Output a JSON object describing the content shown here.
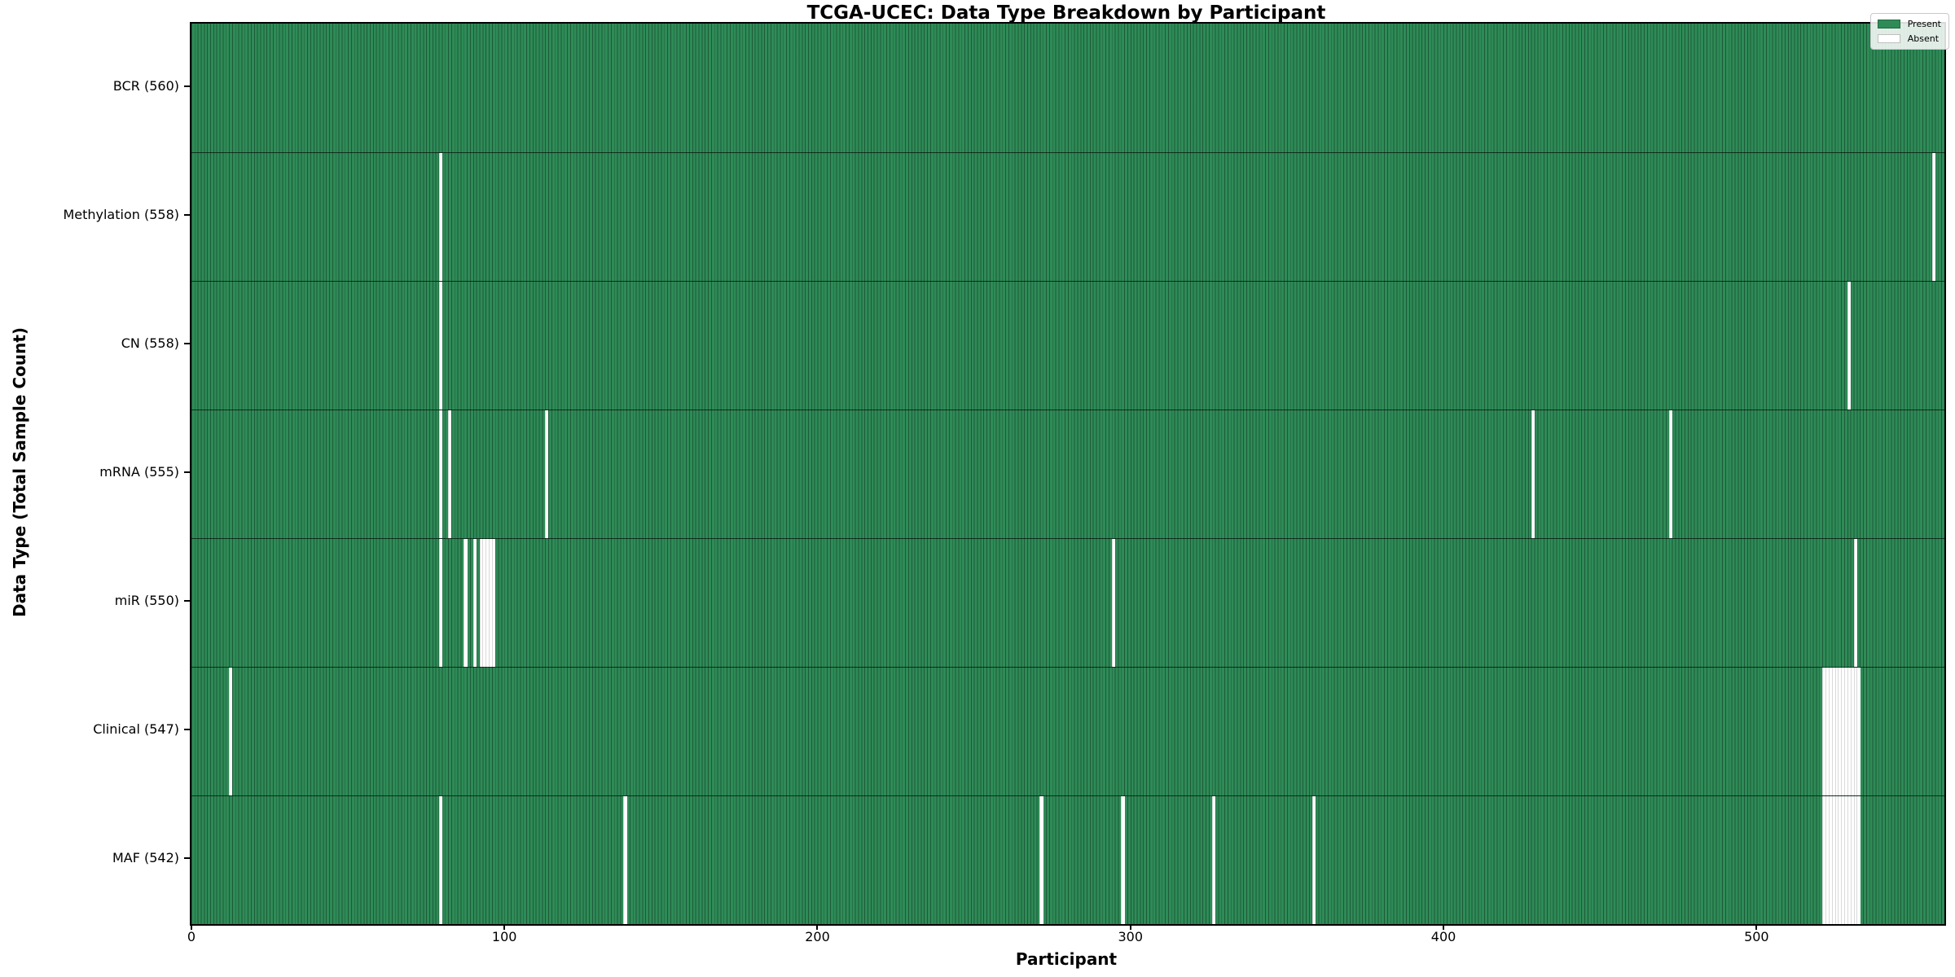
{
  "title": "TCGA-UCEC: Data Type Breakdown by Participant",
  "x_axis_label": "Participant",
  "y_axis_label": "Data Type (Total Sample Count)",
  "legend": {
    "present_label": "Present",
    "absent_label": "Absent"
  },
  "colors": {
    "present": "#2e8b57",
    "absent": "#ffffff",
    "bar_edge": "rgba(0,0,0,0.35)",
    "row_divider": "rgba(0,0,0,0.65)",
    "axis": "#000000"
  },
  "chart_data": {
    "type": "heatmap",
    "title": "TCGA-UCEC: Data Type Breakdown by Participant",
    "xlabel": "Participant",
    "ylabel": "Data Type (Total Sample Count)",
    "legend_entries": [
      "Present",
      "Absent"
    ],
    "legend_position": "upper right",
    "grid": false,
    "total_participants": 560,
    "xlim": [
      0,
      560
    ],
    "x_ticks": [
      0,
      100,
      200,
      300,
      400,
      500
    ],
    "rows": [
      {
        "label": "BCR (560)",
        "data_type": "BCR",
        "present_count": 560,
        "absent_participants": []
      },
      {
        "label": "Methylation (558)",
        "data_type": "Methylation",
        "present_count": 558,
        "absent_participants": [
          79,
          556
        ]
      },
      {
        "label": "CN (558)",
        "data_type": "CN",
        "present_count": 558,
        "absent_participants": [
          79,
          529
        ]
      },
      {
        "label": "mRNA (555)",
        "data_type": "mRNA",
        "present_count": 555,
        "absent_participants": [
          79,
          82,
          113,
          428,
          472
        ]
      },
      {
        "label": "miR (550)",
        "data_type": "miR",
        "present_count": 550,
        "absent_participants": [
          79,
          87,
          90,
          92,
          93,
          94,
          95,
          96,
          294,
          531
        ]
      },
      {
        "label": "Clinical (547)",
        "data_type": "Clinical",
        "present_count": 547,
        "absent_participants": [
          12,
          521,
          522,
          523,
          524,
          525,
          526,
          527,
          528,
          529,
          530,
          531,
          532
        ]
      },
      {
        "label": "MAF (542)",
        "data_type": "MAF",
        "present_count": 542,
        "absent_participants": [
          79,
          138,
          271,
          297,
          326,
          358,
          521,
          522,
          523,
          524,
          525,
          526,
          527,
          528,
          529,
          530,
          531,
          532
        ]
      }
    ]
  }
}
